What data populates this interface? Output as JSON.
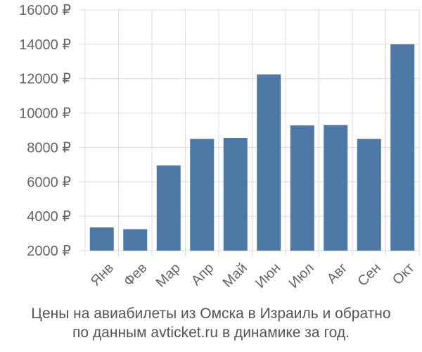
{
  "chart_data": {
    "type": "bar",
    "categories": [
      "Янв",
      "Фев",
      "Мар",
      "Апр",
      "Май",
      "Июн",
      "Июл",
      "Авг",
      "Сен",
      "Окт"
    ],
    "series": [
      {
        "values": [
          3350,
          3250,
          6950,
          8500,
          8550,
          12250,
          9280,
          9300,
          8500,
          14000
        ]
      }
    ],
    "y_ticks": [
      "16000 ₽",
      "14000 ₽",
      "12000 ₽",
      "10000 ₽",
      "8000 ₽",
      "6000 ₽",
      "4000 ₽",
      "2000 ₽"
    ],
    "y_tick_values": [
      16000,
      14000,
      12000,
      10000,
      8000,
      6000,
      4000,
      2000
    ],
    "ylim": [
      2000,
      16000
    ],
    "grid": true,
    "bar_color": "#4e79a7",
    "title_lines": [
      "Цены на авиабилеты из Омска в Израиль и обратно",
      "по данным avticket.ru в динамике за год."
    ]
  }
}
